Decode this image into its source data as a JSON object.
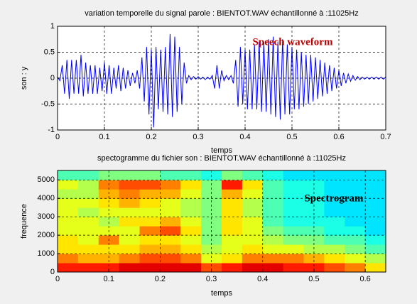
{
  "chart_data": [
    {
      "type": "line",
      "title": "variation temporelle du signal parole : BIENTOT.WAV  échantillonné à :11025Hz",
      "xlabel": "temps",
      "ylabel": "son : y",
      "annotation": "Speech waveform",
      "color": "#0000ff",
      "annotation_color": "#c00000",
      "xlim": [
        0,
        0.7
      ],
      "ylim": [
        -1,
        1
      ],
      "xticks": [
        0,
        0.1,
        0.2,
        0.3,
        0.4,
        0.5,
        0.6,
        0.7
      ],
      "yticks": [
        -1,
        -0.5,
        0,
        0.5,
        1
      ],
      "grid": true,
      "x": [
        0,
        0.005,
        0.01,
        0.015,
        0.02,
        0.025,
        0.03,
        0.035,
        0.04,
        0.045,
        0.05,
        0.055,
        0.06,
        0.065,
        0.07,
        0.075,
        0.08,
        0.085,
        0.09,
        0.095,
        0.1,
        0.105,
        0.11,
        0.115,
        0.12,
        0.125,
        0.13,
        0.135,
        0.14,
        0.145,
        0.15,
        0.155,
        0.16,
        0.165,
        0.17,
        0.175,
        0.18,
        0.185,
        0.19,
        0.195,
        0.2,
        0.205,
        0.21,
        0.215,
        0.22,
        0.225,
        0.23,
        0.235,
        0.24,
        0.245,
        0.25,
        0.255,
        0.26,
        0.265,
        0.27,
        0.275,
        0.28,
        0.285,
        0.29,
        0.295,
        0.3,
        0.305,
        0.31,
        0.315,
        0.32,
        0.325,
        0.33,
        0.335,
        0.34,
        0.345,
        0.35,
        0.355,
        0.36,
        0.365,
        0.37,
        0.375,
        0.38,
        0.385,
        0.39,
        0.395,
        0.4,
        0.405,
        0.41,
        0.415,
        0.42,
        0.425,
        0.43,
        0.435,
        0.44,
        0.445,
        0.45,
        0.455,
        0.46,
        0.465,
        0.47,
        0.475,
        0.48,
        0.485,
        0.49,
        0.495,
        0.5,
        0.505,
        0.51,
        0.515,
        0.52,
        0.525,
        0.53,
        0.535,
        0.54,
        0.545,
        0.55,
        0.555,
        0.56,
        0.565,
        0.57,
        0.575,
        0.58,
        0.585,
        0.59,
        0.595,
        0.6,
        0.605,
        0.61,
        0.615,
        0.62,
        0.625,
        0.63,
        0.635,
        0.64,
        0.645,
        0.65,
        0.655,
        0.66,
        0.665,
        0.67,
        0.675,
        0.68,
        0.685,
        0.69,
        0.695,
        0.7
      ],
      "values": [
        0.02,
        -0.05,
        0.25,
        -0.3,
        0.35,
        -0.4,
        0.35,
        -0.3,
        0.35,
        -0.3,
        0.45,
        -0.35,
        0.3,
        -0.3,
        0.25,
        -0.3,
        0.25,
        -0.3,
        0.2,
        -0.25,
        0.3,
        -0.3,
        0.25,
        -0.3,
        0.2,
        -0.2,
        0.25,
        -0.25,
        0.2,
        -0.2,
        0.15,
        -0.15,
        0.1,
        -0.1,
        0.15,
        -0.2,
        0.4,
        -0.45,
        0.6,
        -0.7,
        0.55,
        -0.95,
        0.6,
        -0.6,
        0.55,
        -0.65,
        0.6,
        -0.7,
        0.85,
        -0.75,
        0.8,
        -0.65,
        0.6,
        -0.5,
        0.3,
        -0.1,
        0.05,
        -0.03,
        0.03,
        -0.02,
        0.03,
        -0.02,
        0.02,
        -0.03,
        0.02,
        -0.02,
        0.05,
        -0.2,
        0.25,
        -0.2,
        0.15,
        -0.05,
        0.05,
        -0.03,
        0.05,
        -0.1,
        0.35,
        -0.55,
        0.6,
        -0.5,
        0.55,
        -0.6,
        0.55,
        -0.6,
        0.65,
        -0.6,
        0.7,
        -0.65,
        0.7,
        -0.65,
        0.75,
        -0.7,
        0.8,
        -0.75,
        0.7,
        -0.8,
        0.75,
        -0.7,
        0.65,
        -0.7,
        0.6,
        -0.6,
        0.55,
        -0.6,
        0.5,
        -0.55,
        0.45,
        -0.5,
        0.45,
        -0.45,
        0.4,
        -0.4,
        0.35,
        -0.35,
        0.3,
        -0.3,
        0.25,
        -0.25,
        0.2,
        -0.2,
        0.15,
        -0.15,
        0.1,
        -0.1,
        0.08,
        -0.06,
        0.05,
        -0.04,
        0.03,
        -0.03,
        0.02,
        -0.02,
        0.02,
        -0.02,
        0.02,
        -0.02,
        0.02,
        -0.02,
        0.02,
        -0.02,
        0.02
      ]
    },
    {
      "type": "heatmap",
      "title": "spectogramme du fichier son : BIENTOT.WAV  échantillonné à :11025Hz",
      "xlabel": "temps",
      "ylabel": "frequence",
      "annotation": "Spectrogram",
      "annotation_color": "#000000",
      "colormap": "jet",
      "xlim": [
        0,
        0.64
      ],
      "ylim": [
        0,
        5512.5
      ],
      "xticks": [
        0,
        0.1,
        0.2,
        0.3,
        0.4,
        0.5,
        0.6
      ],
      "yticks": [
        0,
        1000,
        2000,
        3000,
        4000,
        5000
      ],
      "grid": true,
      "x_bins": [
        0,
        0.04,
        0.08,
        0.12,
        0.16,
        0.2,
        0.24,
        0.28,
        0.32,
        0.36,
        0.4,
        0.44,
        0.48,
        0.52,
        0.56,
        0.6,
        0.64
      ],
      "y_bins": [
        0,
        500,
        1000,
        1500,
        2000,
        2500,
        3000,
        3500,
        4000,
        4500,
        5000,
        5512.5
      ],
      "z": [
        [
          0.85,
          0.75,
          0.65,
          0.65,
          0.6,
          0.6,
          0.6,
          0.6,
          0.55,
          0.6,
          0.45
        ],
        [
          0.85,
          0.7,
          0.65,
          0.6,
          0.6,
          0.6,
          0.55,
          0.6,
          0.55,
          0.55,
          0.45
        ],
        [
          0.85,
          0.7,
          0.65,
          0.75,
          0.6,
          0.55,
          0.6,
          0.65,
          0.7,
          0.75,
          0.5
        ],
        [
          0.9,
          0.75,
          0.65,
          0.6,
          0.6,
          0.65,
          0.6,
          0.7,
          0.75,
          0.8,
          0.5
        ],
        [
          0.9,
          0.8,
          0.7,
          0.65,
          0.75,
          0.65,
          0.6,
          0.65,
          0.7,
          0.8,
          0.5
        ],
        [
          0.9,
          0.8,
          0.7,
          0.65,
          0.8,
          0.7,
          0.6,
          0.6,
          0.7,
          0.75,
          0.45
        ],
        [
          0.9,
          0.75,
          0.65,
          0.6,
          0.65,
          0.6,
          0.55,
          0.55,
          0.6,
          0.65,
          0.45
        ],
        [
          0.8,
          0.6,
          0.55,
          0.5,
          0.5,
          0.5,
          0.5,
          0.5,
          0.5,
          0.5,
          0.4
        ],
        [
          0.85,
          0.65,
          0.6,
          0.6,
          0.65,
          0.65,
          0.65,
          0.65,
          0.7,
          0.85,
          0.5
        ],
        [
          0.9,
          0.75,
          0.65,
          0.6,
          0.6,
          0.6,
          0.55,
          0.55,
          0.6,
          0.65,
          0.45
        ],
        [
          0.9,
          0.75,
          0.6,
          0.55,
          0.5,
          0.45,
          0.45,
          0.45,
          0.45,
          0.45,
          0.4
        ],
        [
          0.85,
          0.75,
          0.6,
          0.5,
          0.45,
          0.4,
          0.4,
          0.4,
          0.4,
          0.4,
          0.35
        ],
        [
          0.85,
          0.7,
          0.55,
          0.5,
          0.45,
          0.4,
          0.4,
          0.4,
          0.4,
          0.4,
          0.35
        ],
        [
          0.8,
          0.65,
          0.55,
          0.45,
          0.4,
          0.4,
          0.35,
          0.35,
          0.35,
          0.35,
          0.35
        ],
        [
          0.75,
          0.6,
          0.5,
          0.45,
          0.4,
          0.35,
          0.35,
          0.35,
          0.35,
          0.35,
          0.35
        ],
        [
          0.65,
          0.55,
          0.45,
          0.4,
          0.35,
          0.35,
          0.35,
          0.35,
          0.35,
          0.35,
          0.35
        ]
      ]
    }
  ]
}
